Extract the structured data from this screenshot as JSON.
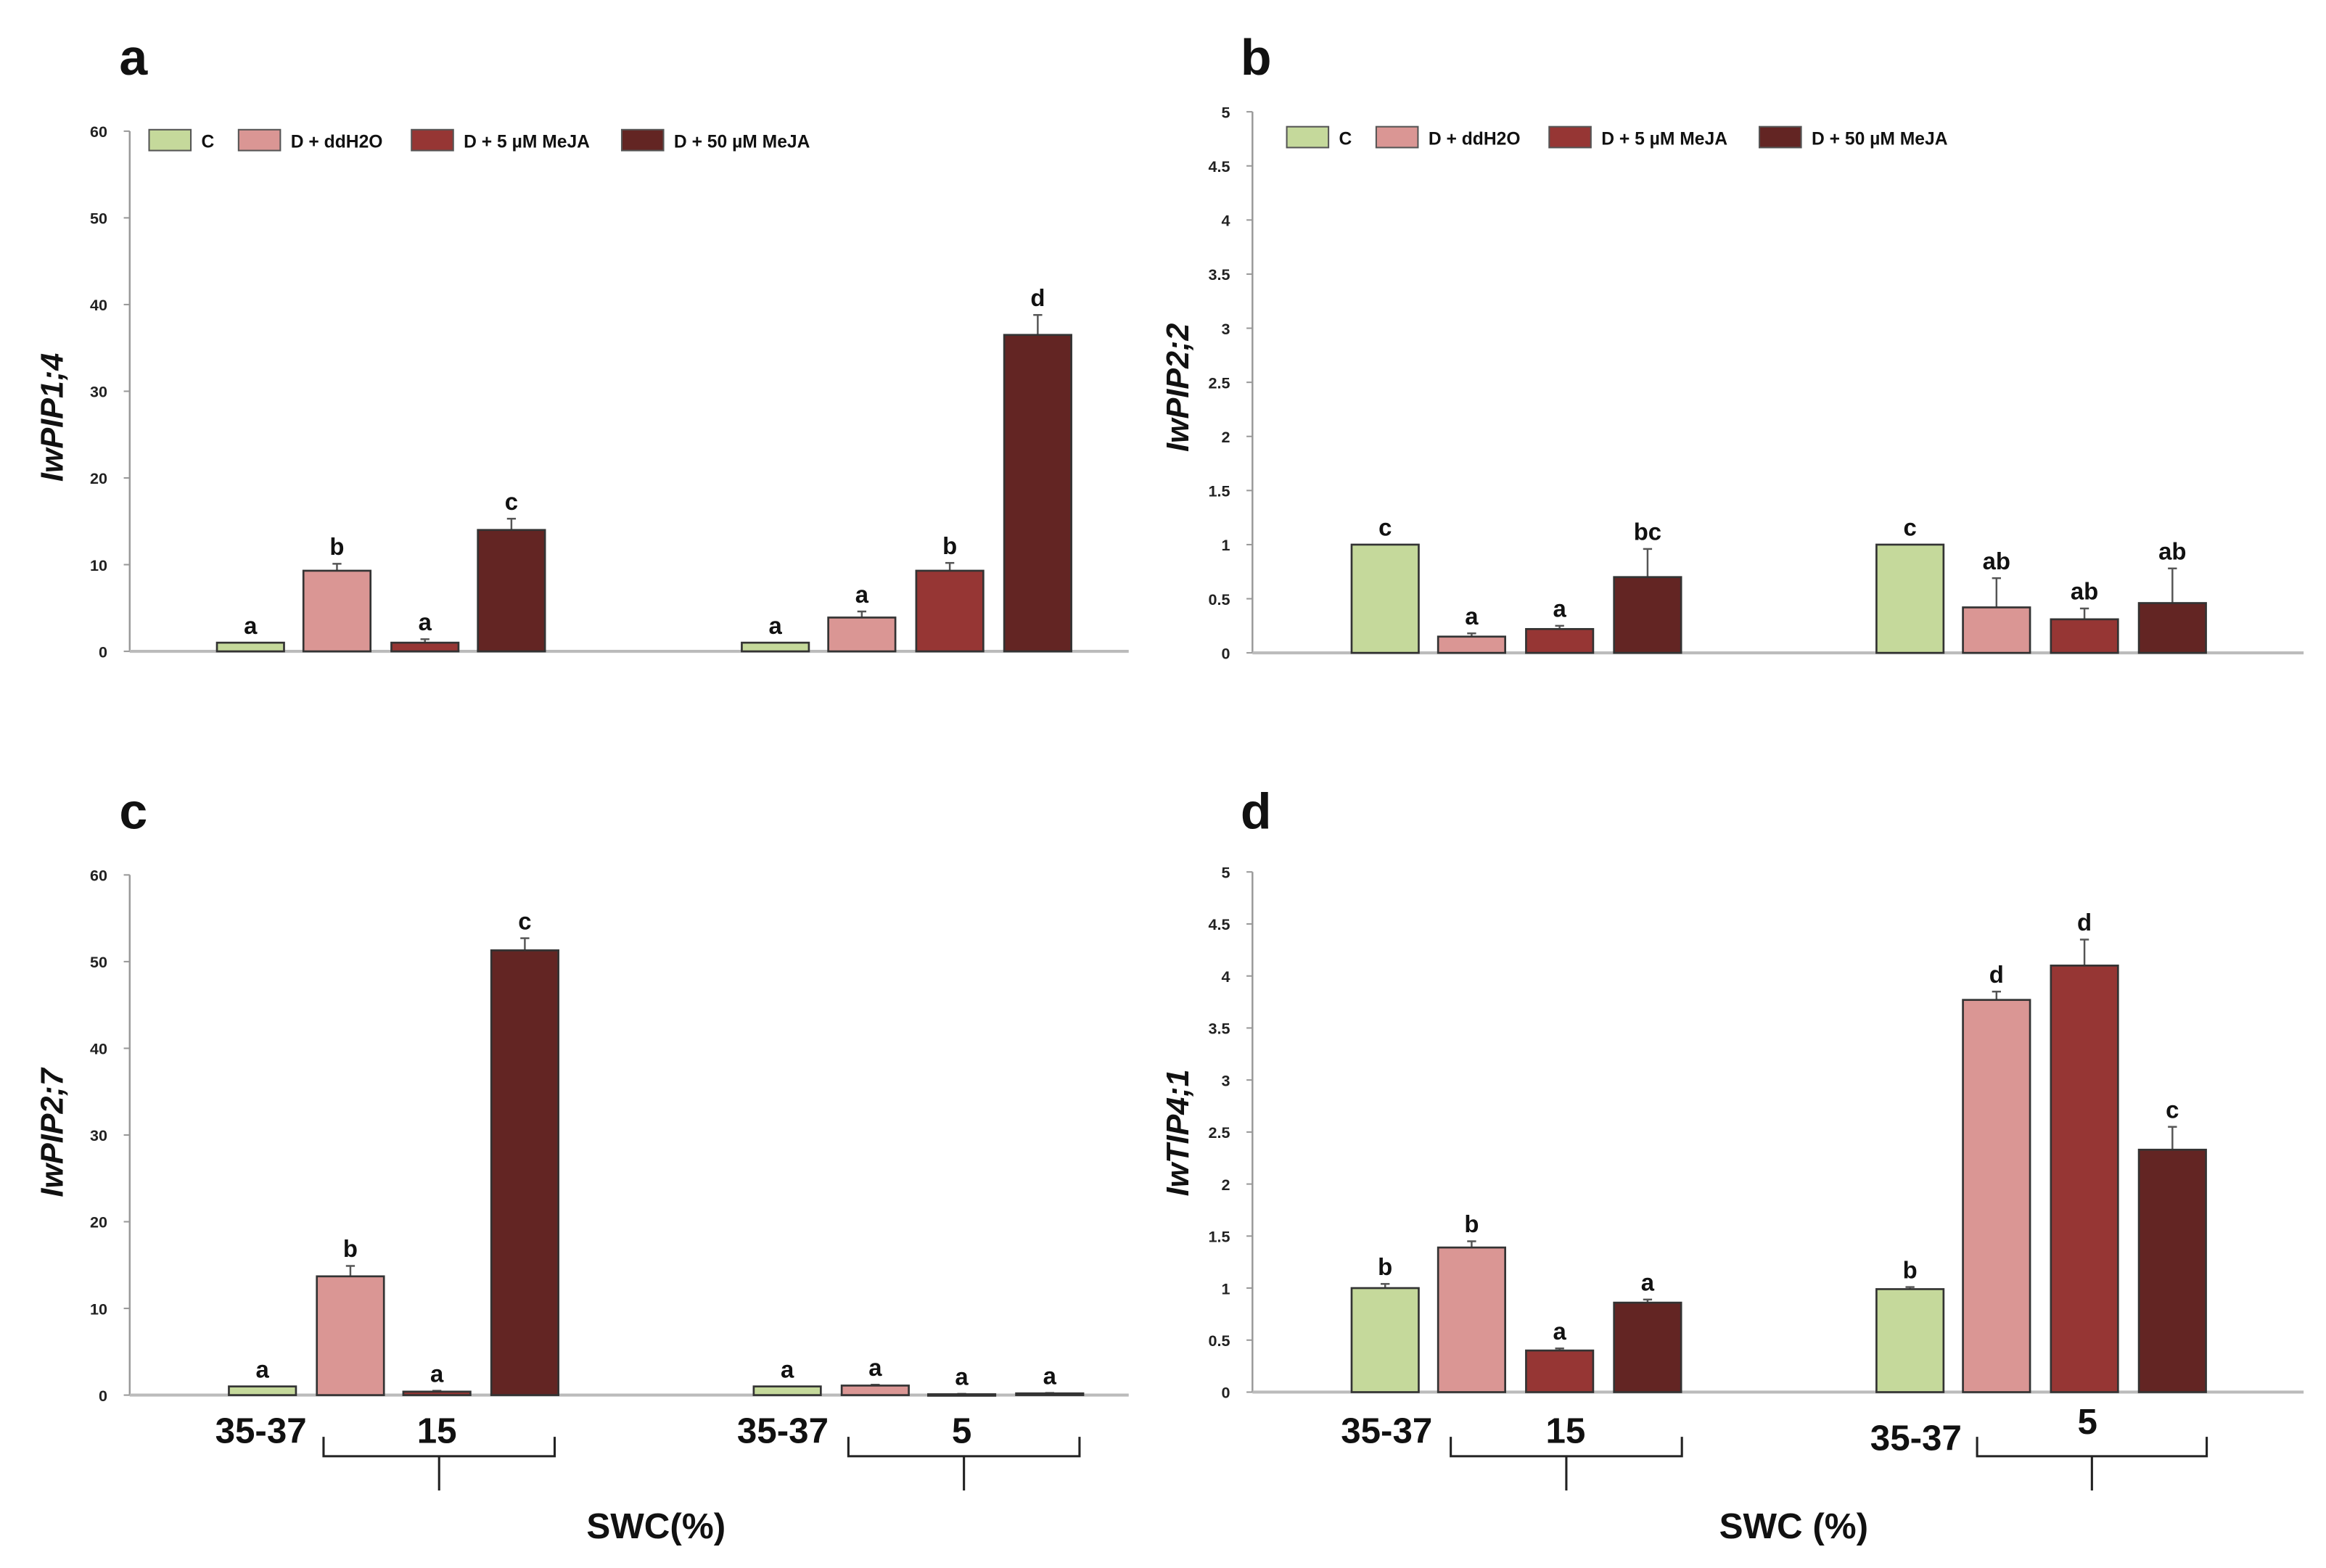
{
  "legend": [
    {
      "label": "C",
      "color": "#c5d99b"
    },
    {
      "label": "D + ddH2O",
      "color": "#da9694"
    },
    {
      "label": "D + 5 µM MeJA",
      "color": "#963634"
    },
    {
      "label": "D + 50 µM MeJA",
      "color": "#632523"
    }
  ],
  "chart_data": [
    {
      "type": "bar",
      "panel": "a",
      "ylabel": "IwPIP1;4",
      "ylim": [
        0,
        60
      ],
      "yticks": [
        "0",
        "10",
        "20",
        "30",
        "40",
        "50",
        "60"
      ],
      "legend_placement": "top-left",
      "groups": [
        {
          "values": [
            1,
            9.3,
            1,
            14
          ],
          "errors": [
            0,
            0.8,
            0.4,
            1.3
          ],
          "letters": [
            "a",
            "b",
            "a",
            "c"
          ]
        },
        {
          "values": [
            1,
            3.9,
            9.3,
            36.5
          ],
          "errors": [
            0,
            0.7,
            0.9,
            2.3
          ],
          "letters": [
            "a",
            "a",
            "b",
            "d"
          ]
        }
      ]
    },
    {
      "type": "bar",
      "panel": "b",
      "ylabel": "IwPIP2;2",
      "ylim": [
        0,
        5
      ],
      "yticks": [
        "0",
        "0.5",
        "1",
        "1.5",
        "2",
        "2.5",
        "3",
        "3.5",
        "4",
        "4.5",
        "5"
      ],
      "legend_placement": "top-left",
      "groups": [
        {
          "values": [
            1,
            0.15,
            0.22,
            0.7
          ],
          "errors": [
            0,
            0.03,
            0.03,
            0.26
          ],
          "letters": [
            "c",
            "a",
            "a",
            "bc"
          ]
        },
        {
          "values": [
            1,
            0.42,
            0.31,
            0.46
          ],
          "errors": [
            0,
            0.27,
            0.1,
            0.32
          ],
          "letters": [
            "c",
            "ab",
            "ab",
            "ab"
          ]
        }
      ]
    },
    {
      "type": "bar",
      "panel": "c",
      "ylabel": "IwPIP2;7",
      "ylim": [
        0,
        60
      ],
      "yticks": [
        "0",
        "10",
        "20",
        "30",
        "40",
        "50",
        "60"
      ],
      "groups": [
        {
          "values": [
            1,
            13.7,
            0.4,
            51.3
          ],
          "errors": [
            0,
            1.2,
            0.1,
            1.4
          ],
          "letters": [
            "a",
            "b",
            "a",
            "c"
          ]
        },
        {
          "values": [
            1,
            1.1,
            0.1,
            0.2
          ],
          "errors": [
            0,
            0.1,
            0.05,
            0.05
          ],
          "letters": [
            "a",
            "a",
            "a",
            "a"
          ]
        }
      ],
      "xcats": [
        "35-37",
        "15",
        "35-37",
        "5"
      ],
      "xlabel": "SWC(%)"
    },
    {
      "type": "bar",
      "panel": "d",
      "ylabel": "IwTIP4;1",
      "ylim": [
        0,
        5
      ],
      "yticks": [
        "0",
        "0.5",
        "1",
        "1.5",
        "2",
        "2.5",
        "3",
        "3.5",
        "4",
        "4.5",
        "5"
      ],
      "groups": [
        {
          "values": [
            1,
            1.39,
            0.4,
            0.86
          ],
          "errors": [
            0.04,
            0.06,
            0.02,
            0.03
          ],
          "letters": [
            "b",
            "b",
            "a",
            "a"
          ]
        },
        {
          "values": [
            0.99,
            3.77,
            4.1,
            2.33
          ],
          "errors": [
            0.02,
            0.08,
            0.25,
            0.22
          ],
          "letters": [
            "b",
            "d",
            "d",
            "c"
          ]
        }
      ],
      "xcats": [
        "35-37",
        "15",
        "35-37",
        "5"
      ],
      "xlabel": "SWC (%)"
    }
  ]
}
